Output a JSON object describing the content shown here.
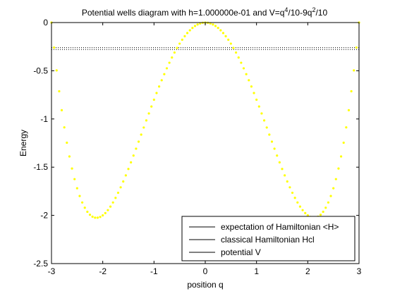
{
  "chart_data": {
    "type": "line",
    "title_parts": {
      "prefix": "Potential wells diagram with h=1.000000e-01 and V=q",
      "exp1": "4",
      "middle": "/10-9q",
      "exp2": "2",
      "suffix": "/10"
    },
    "xlabel": "position q",
    "ylabel": "Energy",
    "xlim": [
      -3,
      3
    ],
    "ylim": [
      -2.5,
      0
    ],
    "xticks": [
      -3,
      -2,
      -1,
      0,
      1,
      2,
      3
    ],
    "xtick_labels": [
      "-3",
      "-2",
      "-1",
      "0",
      "1",
      "2",
      "3"
    ],
    "yticks": [
      0,
      -0.5,
      -1,
      -1.5,
      -2,
      -2.5
    ],
    "ytick_labels": [
      "0",
      "-0.5",
      "-1",
      "-1.5",
      "-2",
      "-2.5"
    ],
    "grid": false,
    "legend_position": "bottom-right",
    "series": [
      {
        "name": "expectation of Hamiltonian <H>",
        "style": "dotted",
        "color": "#000000",
        "x": [
          -3,
          3
        ],
        "y": [
          -0.26,
          -0.26
        ]
      },
      {
        "name": "classical Hamiltonian Hcl",
        "style": "dotted",
        "color": "#000000",
        "x": [
          -3,
          3
        ],
        "y": [
          -0.28,
          -0.28
        ]
      },
      {
        "name": "potential V",
        "style": "markers",
        "color": "#ffff00",
        "function": "q^4/10-9q^2/10",
        "x_start": -3,
        "x_end": 3,
        "x_step": 0.05
      }
    ]
  }
}
